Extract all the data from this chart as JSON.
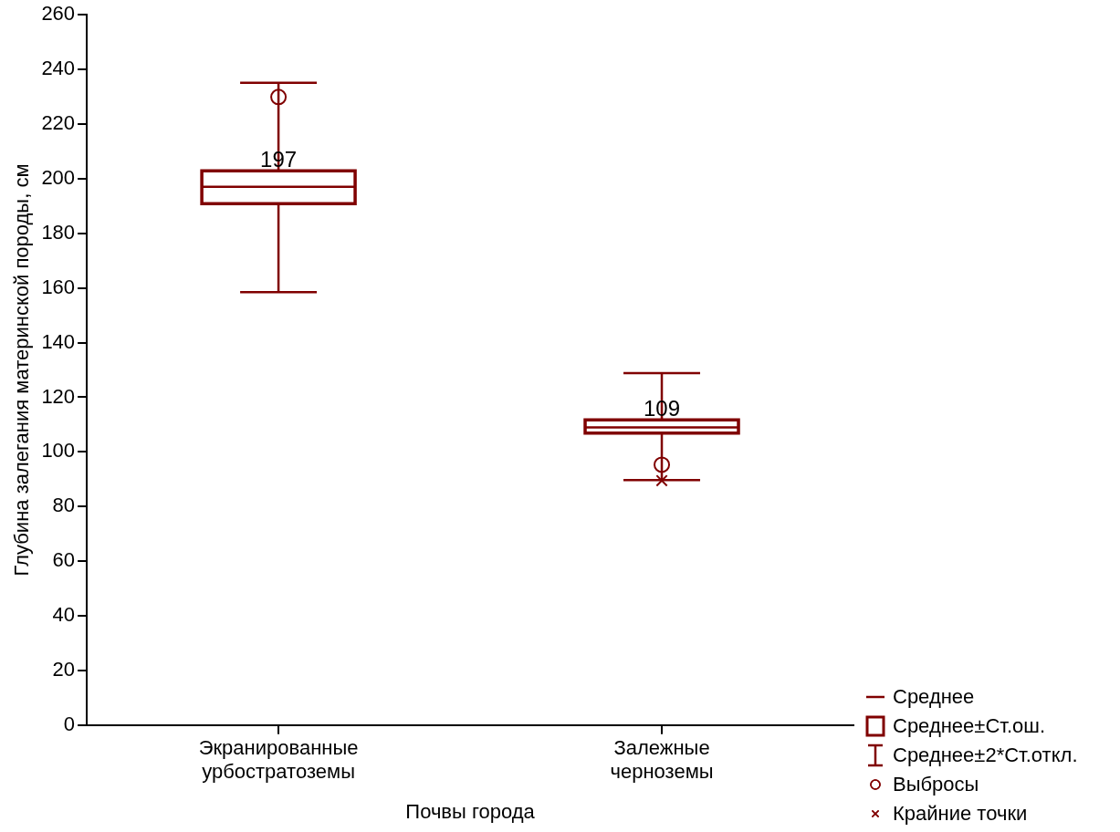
{
  "chart_data": {
    "type": "box",
    "xlabel": "Почвы города",
    "ylabel": "Глубина залегания материнской породы, см",
    "categories": [
      "Экранированные урбостратоземы",
      "Залежные черноземы"
    ],
    "ylim": [
      0,
      260
    ],
    "yticks": [
      0,
      20,
      40,
      60,
      80,
      100,
      120,
      140,
      160,
      180,
      200,
      220,
      240,
      260
    ],
    "grid": false,
    "legend": "bottom right",
    "annotations": [
      "Среднее±Ст.ош.",
      "Среднее±2*Ст.откл."
    ],
    "series": [
      {
        "name": "Среднее",
        "color": "#800000",
        "value_labels": [
          "197",
          "109"
        ],
        "boxes": [
          {
            "low": 158.5,
            "q1": 190.9,
            "median": 197,
            "q3": 202.9,
            "high": 235.1
          },
          {
            "low": 89.7,
            "q1": 106.9,
            "median": 109,
            "q3": 111.7,
            "high": 128.8
          }
        ]
      },
      {
        "type": "scatter",
        "name": "Выбросы",
        "color": "#800000",
        "marker": "circle",
        "x": [
          "Экранированные урбостратоземы",
          "Залежные черноземы"
        ],
        "values": [
          229.9,
          95.3
        ]
      },
      {
        "type": "scatter",
        "name": "Крайние точки",
        "color": "#800000",
        "marker": "cross",
        "x": [
          "Залежные черноземы"
        ],
        "values": [
          89.5
        ]
      }
    ]
  }
}
